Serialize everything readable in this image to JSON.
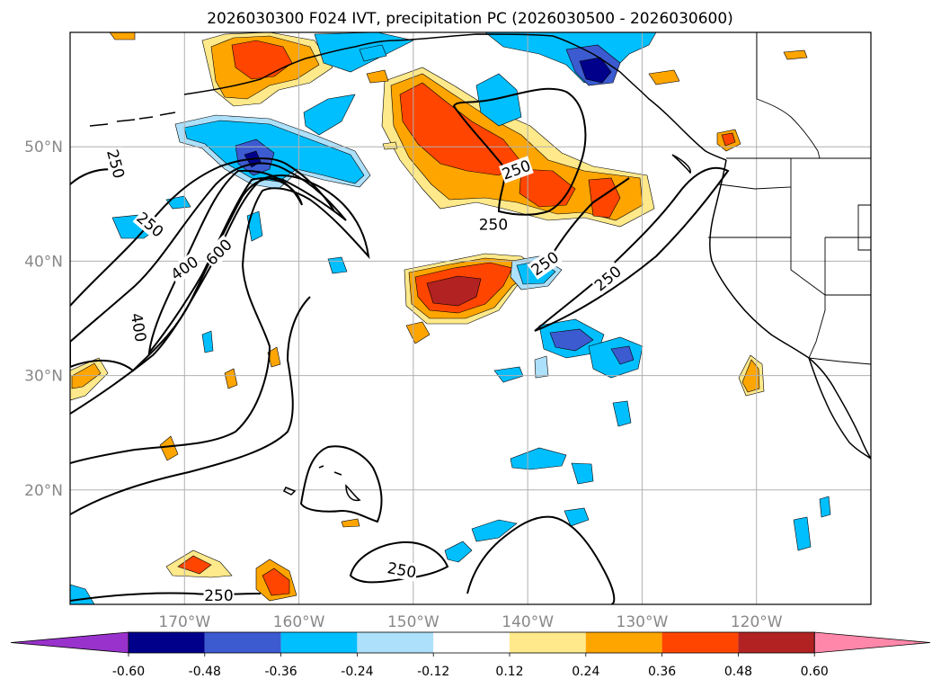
{
  "title": "2026030300 F024 IVT, precipitation PC (2026030500 - 2026030600)",
  "map": {
    "lon_range": [
      -180,
      -110
    ],
    "lat_range": [
      10,
      60
    ],
    "lon_ticks": [
      {
        "lon": -170,
        "label": "170°W"
      },
      {
        "lon": -160,
        "label": "160°W"
      },
      {
        "lon": -150,
        "label": "150°W"
      },
      {
        "lon": -140,
        "label": "140°W"
      },
      {
        "lon": -130,
        "label": "130°W"
      },
      {
        "lon": -120,
        "label": "120°W"
      }
    ],
    "lat_ticks": [
      {
        "lat": 20,
        "label": "20°N"
      },
      {
        "lat": 30,
        "label": "30°N"
      },
      {
        "lat": 40,
        "label": "40°N"
      },
      {
        "lat": 50,
        "label": "50°N"
      }
    ],
    "gridlines": true
  },
  "ivt_labels": [
    {
      "text": "250",
      "lon": -176,
      "lat": 48.5,
      "rot": 75
    },
    {
      "text": "250",
      "lon": -173,
      "lat": 43.2,
      "rot": 40
    },
    {
      "text": "400",
      "lon": -170,
      "lat": 39.4,
      "rot": -35
    },
    {
      "text": "600",
      "lon": -167,
      "lat": 40.8,
      "rot": -45
    },
    {
      "text": "400",
      "lon": -174,
      "lat": 34.2,
      "rot": 80
    },
    {
      "text": "250",
      "lon": -141,
      "lat": 48.0,
      "rot": -20
    },
    {
      "text": "250",
      "lon": -143,
      "lat": 43.2,
      "rot": 0
    },
    {
      "text": "250",
      "lon": -138.5,
      "lat": 39.8,
      "rot": -35
    },
    {
      "text": "250",
      "lon": -133,
      "lat": 38.5,
      "rot": -40
    },
    {
      "text": "250",
      "lon": -151,
      "lat": 13.0,
      "rot": 10
    },
    {
      "text": "250",
      "lon": -167,
      "lat": 10.8,
      "rot": 0
    }
  ],
  "colorbar": {
    "levels": [
      "-0.60",
      "-0.48",
      "-0.36",
      "-0.24",
      "-0.12",
      "0.12",
      "0.24",
      "0.36",
      "0.48",
      "0.60"
    ],
    "colors": [
      "#9932cc",
      "#00008b",
      "#3c5bd0",
      "#00bfff",
      "#ade0fa",
      "#ffffff",
      "#ffe98a",
      "#ffa500",
      "#ff4500",
      "#b22222",
      "#ff88aa"
    ],
    "extend": "both"
  },
  "colors": {
    "contour": "#000000",
    "grid": "#b0b0b0",
    "tick_label": "#888888"
  }
}
